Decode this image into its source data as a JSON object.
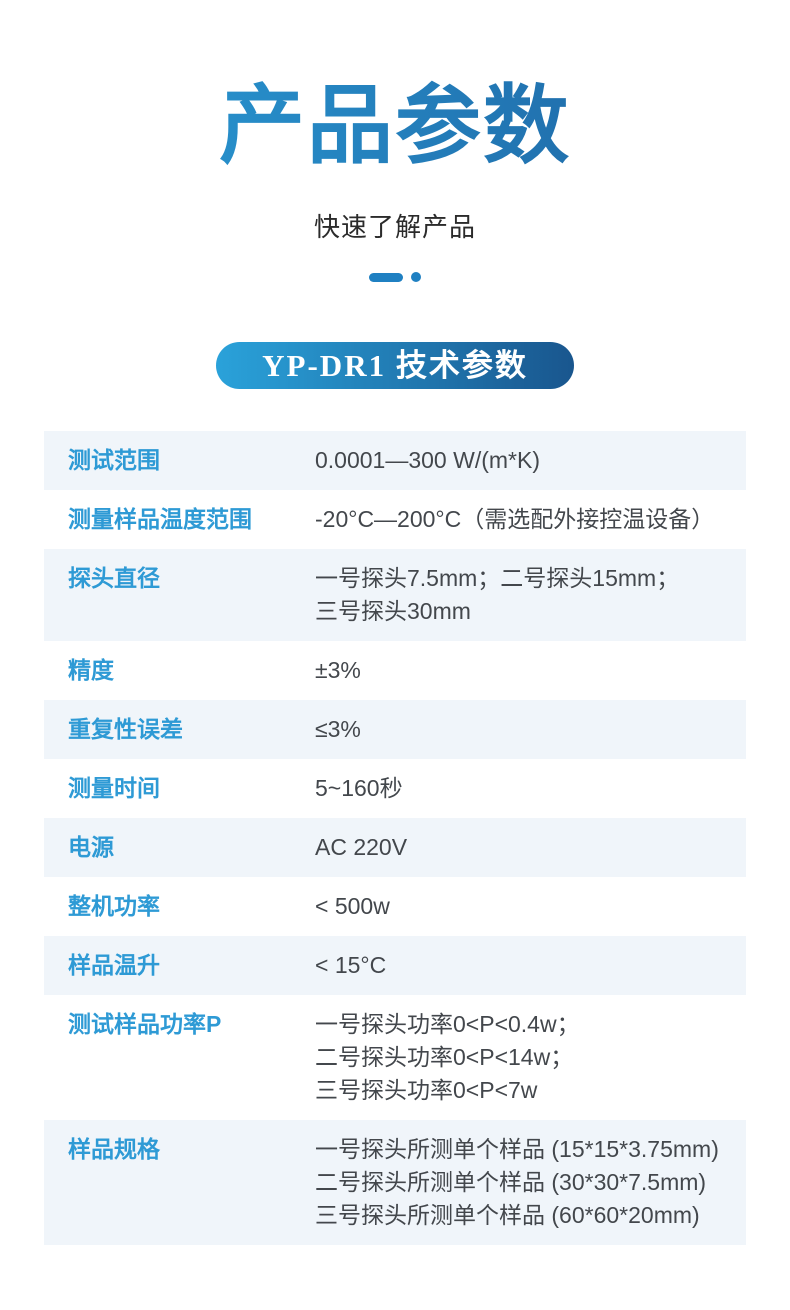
{
  "header": {
    "title": "产品参数",
    "subtitle": "快速了解产品",
    "badge": "YP-DR1 技术参数"
  },
  "colors": {
    "title_grad_start": "#2ba0da",
    "title_grad_end": "#1d5f9e",
    "badge_grad_start": "#2aa2da",
    "badge_grad_end": "#19568e",
    "label_blue": "#2e9ad5",
    "value_gray": "#43474c",
    "row_alt_bg": "#f0f5fa",
    "accent_blue": "#1f80c2",
    "subtitle_gray": "#2b2b2b"
  },
  "spec_table": {
    "rows": [
      {
        "label": "测试范围",
        "values": [
          "0.0001—300 W/(m*K)"
        ]
      },
      {
        "label": "测量样品温度范围",
        "values": [
          "-20°C—200°C（需选配外接控温设备）"
        ]
      },
      {
        "label": "探头直径",
        "values": [
          "一号探头7.5mm；二号探头15mm；",
          "三号探头30mm"
        ]
      },
      {
        "label": "精度",
        "values": [
          "±3%"
        ]
      },
      {
        "label": "重复性误差",
        "values": [
          "≤3%"
        ]
      },
      {
        "label": "测量时间",
        "values": [
          "5~160秒"
        ]
      },
      {
        "label": "电源",
        "values": [
          "AC 220V"
        ]
      },
      {
        "label": "整机功率",
        "values": [
          "< 500w"
        ]
      },
      {
        "label": "样品温升",
        "values": [
          "< 15°C"
        ]
      },
      {
        "label": "测试样品功率P",
        "values": [
          "一号探头功率0<P<0.4w；",
          "二号探头功率0<P<14w；",
          "三号探头功率0<P<7w"
        ]
      },
      {
        "label": "样品规格",
        "values": [
          "一号探头所测单个样品 (15*15*3.75mm)",
          "二号探头所测单个样品 (30*30*7.5mm)",
          "三号探头所测单个样品 (60*60*20mm)"
        ]
      }
    ]
  }
}
